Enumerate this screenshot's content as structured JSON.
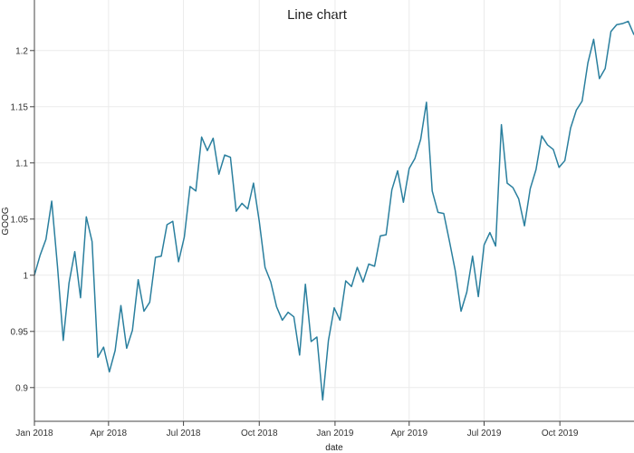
{
  "chart_data": {
    "type": "line",
    "title": "Line chart",
    "xlabel": "date",
    "ylabel": "GOOG",
    "x_tick_labels": [
      "Jan 2018",
      "Apr 2018",
      "Jul 2018",
      "Oct 2018",
      "Jan 2019",
      "Apr 2019",
      "Jul 2019",
      "Oct 2019"
    ],
    "y_tick_labels": [
      "0.9",
      "0.95",
      "1",
      "1.05",
      "1.1",
      "1.15",
      "1.2"
    ],
    "y_ticks": [
      0.9,
      0.95,
      1,
      1.05,
      1.1,
      1.15,
      1.2
    ],
    "xlim": [
      "2018-01-01",
      "2019-12-30"
    ],
    "ylim": [
      0.87,
      1.245
    ],
    "grid": true,
    "colors": {
      "line": "#2a7f9e",
      "grid": "#ebebeb",
      "axis": "#444444"
    },
    "series": [
      {
        "x": [
          "2018-01-01",
          "2018-01-08",
          "2018-01-15",
          "2018-01-22",
          "2018-01-29",
          "2018-02-05",
          "2018-02-12",
          "2018-02-19",
          "2018-02-26",
          "2018-03-05",
          "2018-03-12",
          "2018-03-19",
          "2018-03-26",
          "2018-04-02",
          "2018-04-09",
          "2018-04-16",
          "2018-04-23",
          "2018-04-30",
          "2018-05-07",
          "2018-05-14",
          "2018-05-21",
          "2018-05-28",
          "2018-06-04",
          "2018-06-11",
          "2018-06-18",
          "2018-06-25",
          "2018-07-02",
          "2018-07-09",
          "2018-07-16",
          "2018-07-23",
          "2018-07-30",
          "2018-08-06",
          "2018-08-13",
          "2018-08-20",
          "2018-08-27",
          "2018-09-03",
          "2018-09-10",
          "2018-09-17",
          "2018-09-24",
          "2018-10-01",
          "2018-10-08",
          "2018-10-15",
          "2018-10-22",
          "2018-10-29",
          "2018-11-05",
          "2018-11-12",
          "2018-11-19",
          "2018-11-26",
          "2018-12-03",
          "2018-12-10",
          "2018-12-17",
          "2018-12-24",
          "2018-12-31",
          "2019-01-07",
          "2019-01-14",
          "2019-01-21",
          "2019-01-28",
          "2019-02-04",
          "2019-02-11",
          "2019-02-18",
          "2019-02-25",
          "2019-03-04",
          "2019-03-11",
          "2019-03-18",
          "2019-03-25",
          "2019-04-01",
          "2019-04-08",
          "2019-04-15",
          "2019-04-22",
          "2019-04-29",
          "2019-05-06",
          "2019-05-13",
          "2019-05-20",
          "2019-05-27",
          "2019-06-03",
          "2019-06-10",
          "2019-06-17",
          "2019-06-24",
          "2019-07-01",
          "2019-07-08",
          "2019-07-15",
          "2019-07-22",
          "2019-07-29",
          "2019-08-05",
          "2019-08-12",
          "2019-08-19",
          "2019-08-26",
          "2019-09-02",
          "2019-09-09",
          "2019-09-16",
          "2019-09-23",
          "2019-09-30",
          "2019-10-07",
          "2019-10-14",
          "2019-10-21",
          "2019-10-28",
          "2019-11-04",
          "2019-11-11",
          "2019-11-18",
          "2019-11-25",
          "2019-12-02",
          "2019-12-09",
          "2019-12-16",
          "2019-12-23",
          "2019-12-30"
        ],
        "y": [
          1.0,
          1.018,
          1.032,
          1.066,
          1.008,
          0.942,
          0.993,
          1.021,
          0.98,
          1.052,
          1.03,
          0.927,
          0.936,
          0.914,
          0.933,
          0.973,
          0.935,
          0.951,
          0.996,
          0.968,
          0.976,
          1.016,
          1.017,
          1.045,
          1.048,
          1.012,
          1.034,
          1.079,
          1.075,
          1.123,
          1.111,
          1.122,
          1.09,
          1.107,
          1.105,
          1.057,
          1.064,
          1.059,
          1.082,
          1.048,
          1.007,
          0.994,
          0.972,
          0.96,
          0.967,
          0.963,
          0.929,
          0.992,
          0.941,
          0.945,
          0.889,
          0.942,
          0.971,
          0.96,
          0.995,
          0.99,
          1.007,
          0.994,
          1.01,
          1.008,
          1.035,
          1.036,
          1.076,
          1.093,
          1.065,
          1.095,
          1.104,
          1.121,
          1.154,
          1.075,
          1.056,
          1.055,
          1.03,
          1.004,
          0.968,
          0.985,
          1.017,
          0.981,
          1.027,
          1.038,
          1.026,
          1.134,
          1.082,
          1.078,
          1.068,
          1.044,
          1.077,
          1.094,
          1.124,
          1.116,
          1.112,
          1.096,
          1.102,
          1.131,
          1.147,
          1.155,
          1.189,
          1.21,
          1.175,
          1.184,
          1.217,
          1.223,
          1.224,
          1.226,
          1.214
        ]
      }
    ]
  }
}
